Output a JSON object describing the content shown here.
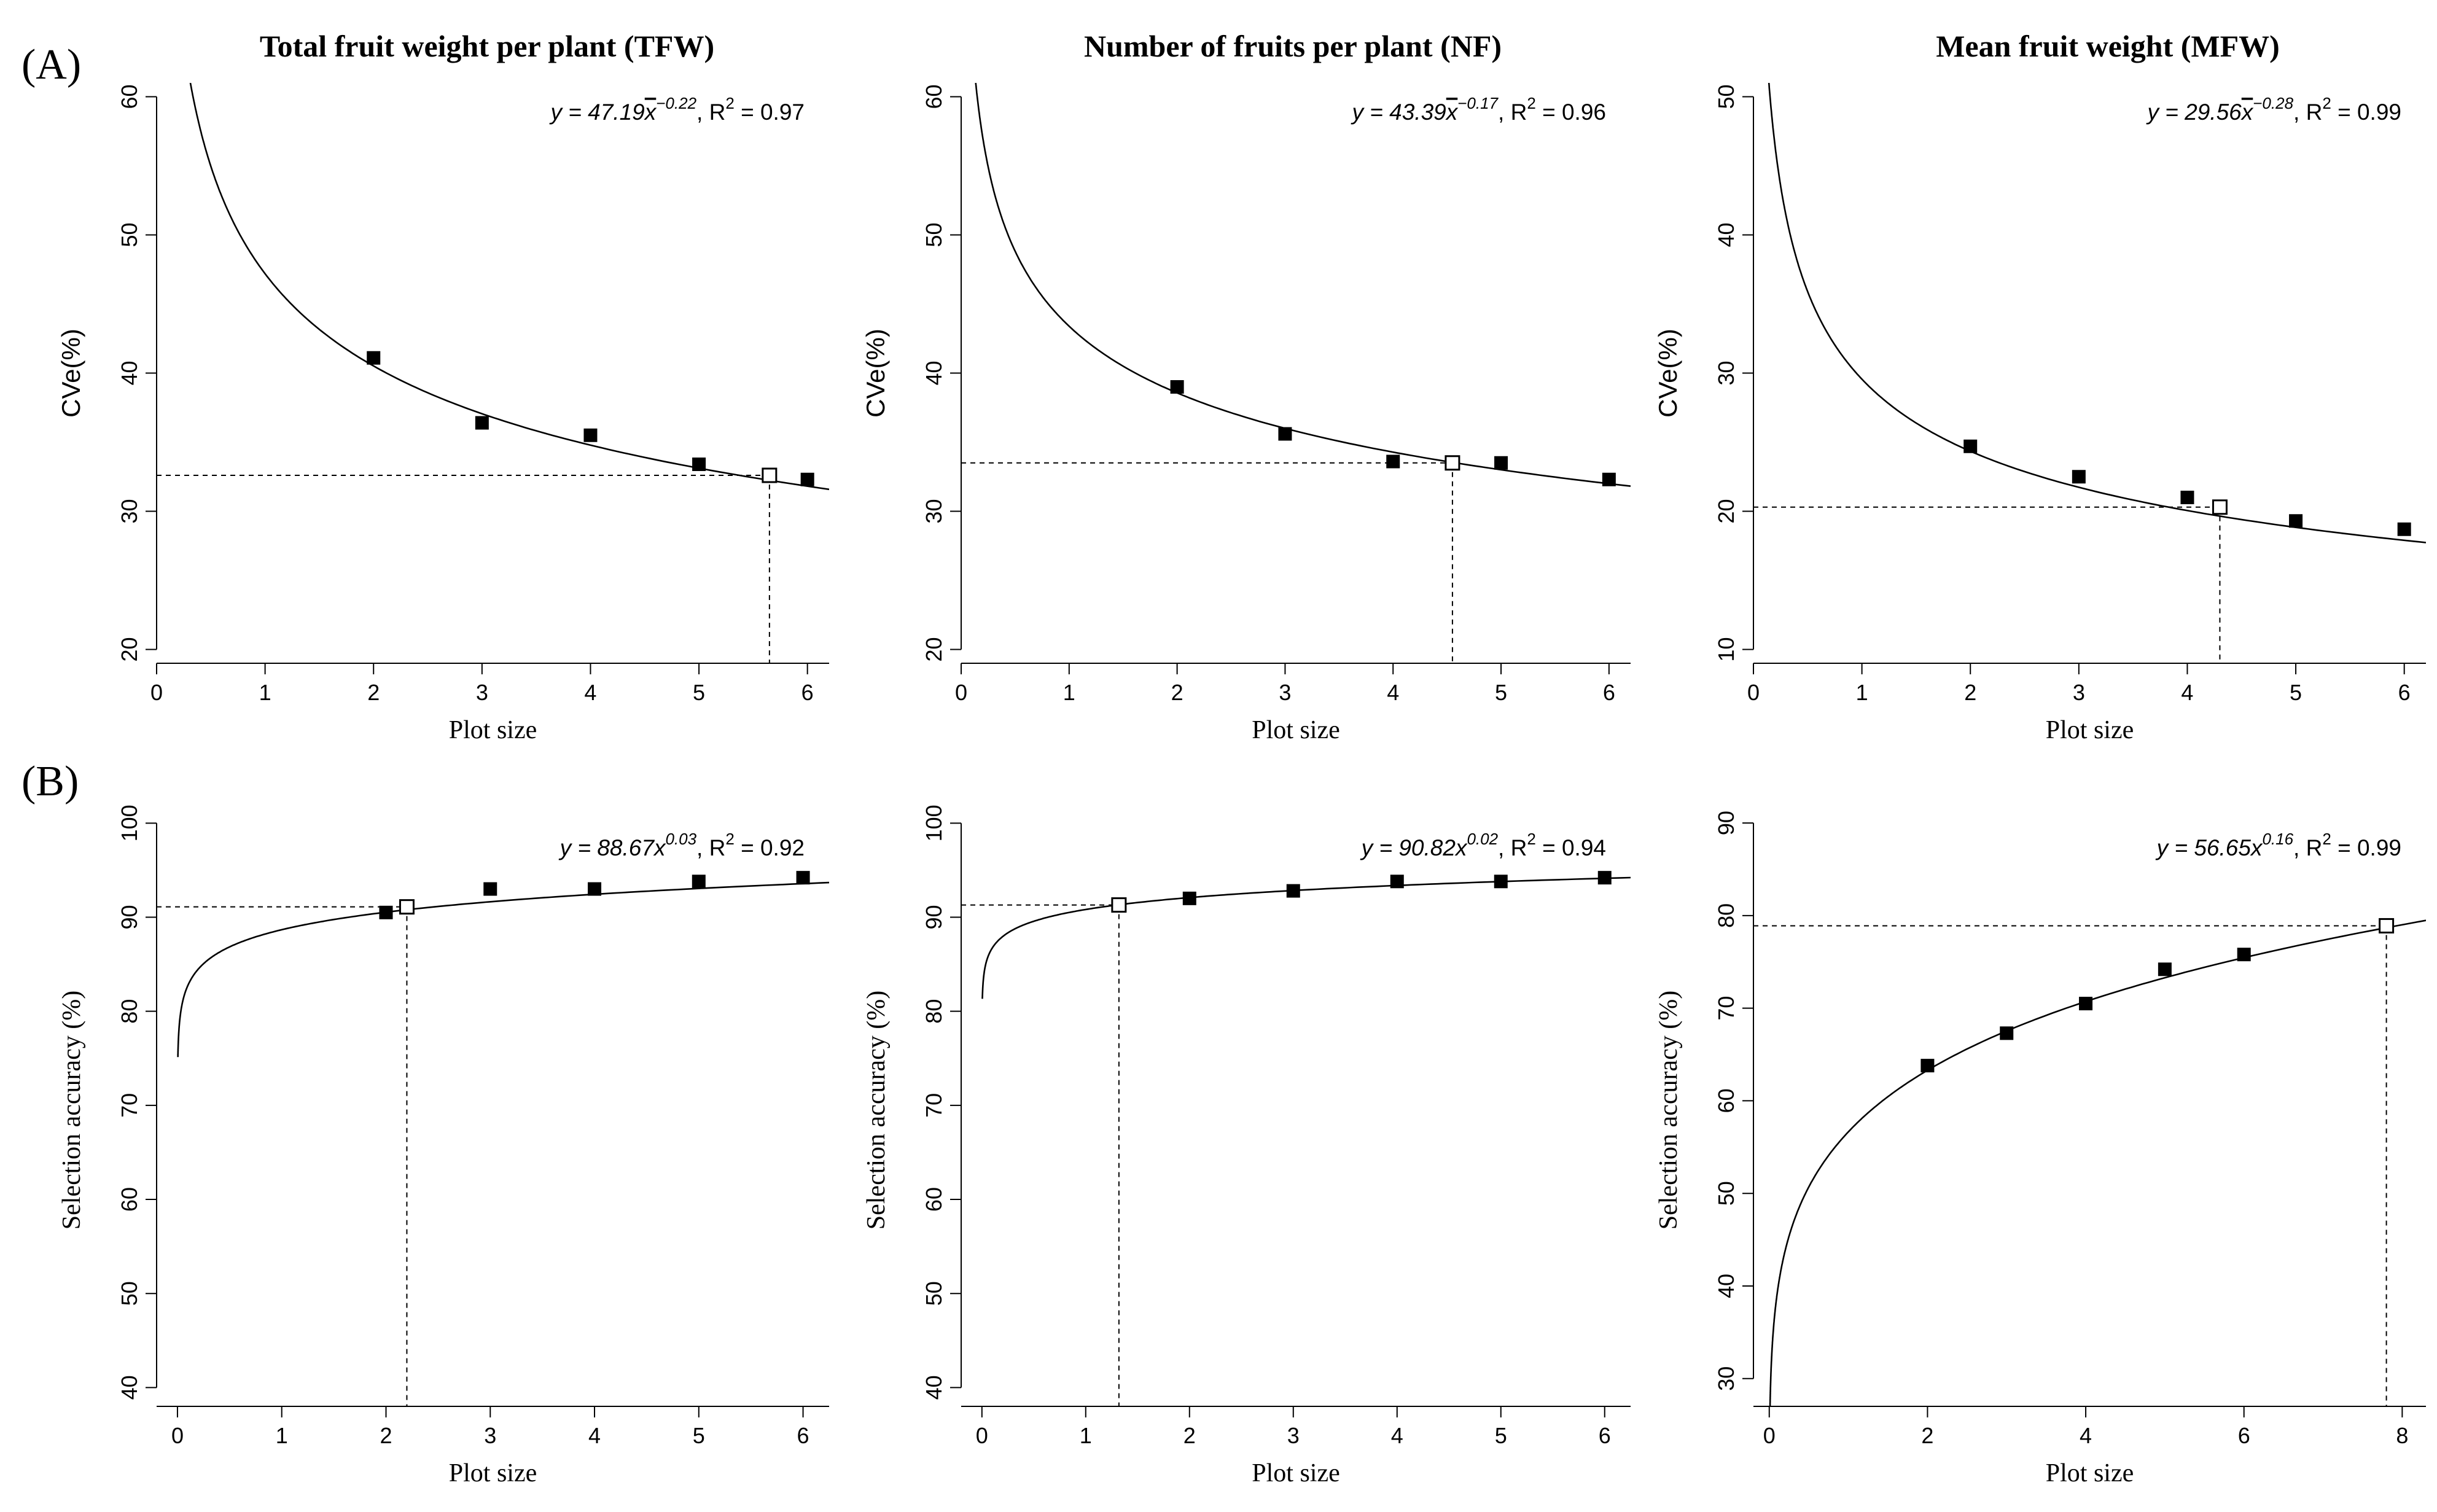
{
  "figure": {
    "row_labels": [
      "(A)",
      "(B)"
    ],
    "titles": [
      "Total fruit weight per plant (TFW)",
      "Number of fruits per plant (NF)",
      "Mean fruit weight (MFW)"
    ]
  },
  "chart_data": [
    {
      "type": "scatter",
      "panel": "A",
      "title": "Total fruit weight per plant (TFW)",
      "xlabel": "Plot size",
      "ylabel": "CVe(%)",
      "xlim": [
        0,
        6.2
      ],
      "ylim": [
        19,
        61
      ],
      "xticks": [
        0,
        1,
        2,
        3,
        4,
        5,
        6
      ],
      "yticks": [
        20,
        30,
        40,
        50,
        60
      ],
      "fit": {
        "a": 47.19,
        "b": -0.22
      },
      "equation": {
        "lhs": "y = 47.19",
        "var": "x",
        "exp": "−0.22",
        "r2_label": "R",
        "r2_exp": "2",
        "r2_value": " = 0.97"
      },
      "x": [
        2,
        3,
        4,
        5,
        6
      ],
      "y": [
        41.1,
        36.4,
        35.5,
        33.4,
        32.3
      ],
      "optimum": {
        "x": 5.65,
        "y": 32.6
      }
    },
    {
      "type": "scatter",
      "panel": "A",
      "title": "Number of fruits per plant (NF)",
      "xlabel": "Plot size",
      "ylabel": "CVe(%)",
      "xlim": [
        0,
        6.2
      ],
      "ylim": [
        19,
        61
      ],
      "xticks": [
        0,
        1,
        2,
        3,
        4,
        5,
        6
      ],
      "yticks": [
        20,
        30,
        40,
        50,
        60
      ],
      "fit": {
        "a": 43.39,
        "b": -0.17
      },
      "equation": {
        "lhs": "y = 43.39",
        "var": "x",
        "exp": "−0.17",
        "r2_label": "R",
        "r2_exp": "2",
        "r2_value": " = 0.96"
      },
      "x": [
        2,
        3,
        4,
        5,
        6
      ],
      "y": [
        39.0,
        35.6,
        33.6,
        33.5,
        32.3
      ],
      "optimum": {
        "x": 4.55,
        "y": 33.5
      }
    },
    {
      "type": "scatter",
      "panel": "A",
      "title": "Mean fruit weight (MFW)",
      "xlabel": "Plot size",
      "ylabel": "CVe(%)",
      "xlim": [
        0,
        6.2
      ],
      "ylim": [
        9,
        51
      ],
      "xticks": [
        0,
        1,
        2,
        3,
        4,
        5,
        6
      ],
      "yticks": [
        10,
        20,
        30,
        40,
        50
      ],
      "fit": {
        "a": 29.56,
        "b": -0.28
      },
      "equation": {
        "lhs": "y = 29.56",
        "var": "x",
        "exp": "−0.28",
        "r2_label": "R",
        "r2_exp": "2",
        "r2_value": " = 0.99"
      },
      "x": [
        2,
        3,
        4,
        5,
        6
      ],
      "y": [
        24.7,
        22.5,
        21.0,
        19.3,
        18.7
      ],
      "optimum": {
        "x": 4.3,
        "y": 20.3
      }
    },
    {
      "type": "scatter",
      "panel": "B",
      "title": "",
      "xlabel": "Plot size",
      "ylabel": "Selection accuracy (%)",
      "xlim": [
        -0.2,
        6.25
      ],
      "ylim": [
        38,
        101
      ],
      "xticks": [
        0,
        1,
        2,
        3,
        4,
        5,
        6
      ],
      "yticks": [
        40,
        50,
        60,
        70,
        80,
        90,
        100
      ],
      "fit": {
        "a": 88.67,
        "b": 0.03
      },
      "equation": {
        "lhs": "y = 88.67",
        "var": "x",
        "exp": "0.03",
        "r2_label": "R",
        "r2_exp": "2",
        "r2_value": " = 0.92"
      },
      "x": [
        2,
        3,
        4,
        5,
        6
      ],
      "y": [
        90.5,
        93.0,
        93.0,
        93.8,
        94.2
      ],
      "optimum": {
        "x": 2.2,
        "y": 91.1
      }
    },
    {
      "type": "scatter",
      "panel": "B",
      "title": "",
      "xlabel": "Plot size",
      "ylabel": "Selection accuracy (%)",
      "xlim": [
        -0.2,
        6.25
      ],
      "ylim": [
        38,
        101
      ],
      "xticks": [
        0,
        1,
        2,
        3,
        4,
        5,
        6
      ],
      "yticks": [
        40,
        50,
        60,
        70,
        80,
        90,
        100
      ],
      "fit": {
        "a": 90.82,
        "b": 0.02
      },
      "equation": {
        "lhs": "y = 90.82",
        "var": "x",
        "exp": "0.02",
        "r2_label": "R",
        "r2_exp": "2",
        "r2_value": " = 0.94"
      },
      "x": [
        2,
        3,
        4,
        5,
        6
      ],
      "y": [
        92.0,
        92.8,
        93.8,
        93.8,
        94.2
      ],
      "optimum": {
        "x": 1.32,
        "y": 91.3
      }
    },
    {
      "type": "scatter",
      "panel": "B",
      "title": "",
      "xlabel": "Plot size",
      "ylabel": "Selection accuracy (%)",
      "xlim": [
        -0.2,
        8.3
      ],
      "ylim": [
        27,
        91
      ],
      "xticks": [
        0,
        2,
        4,
        6,
        8
      ],
      "yticks": [
        30,
        40,
        50,
        60,
        70,
        80,
        90
      ],
      "fit": {
        "a": 56.65,
        "b": 0.16
      },
      "equation": {
        "lhs": "y = 56.65",
        "var": "x",
        "exp": "0.16",
        "r2_label": "R",
        "r2_exp": "2",
        "r2_value": " = 0.99"
      },
      "x": [
        2,
        3,
        4,
        5,
        6
      ],
      "y": [
        63.8,
        67.3,
        70.5,
        74.2,
        75.8
      ],
      "optimum": {
        "x": 7.8,
        "y": 78.9
      }
    }
  ]
}
